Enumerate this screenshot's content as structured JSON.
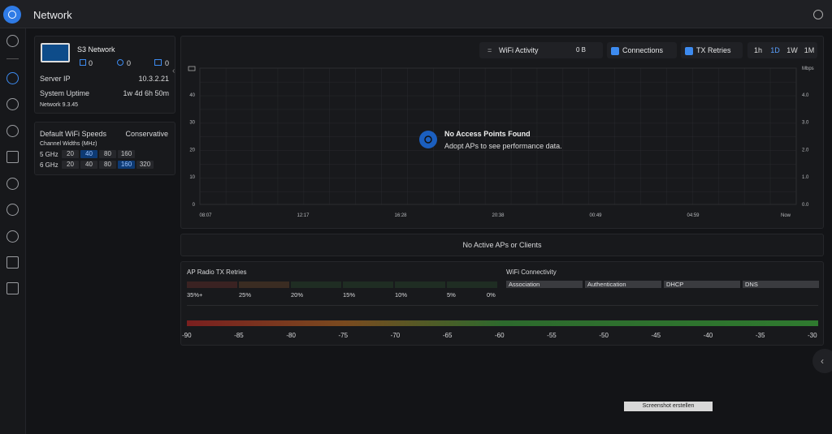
{
  "header": {
    "title": "Network"
  },
  "device": {
    "name": "S3 Network",
    "counts": [
      0,
      0,
      0
    ],
    "server_ip_label": "Server IP",
    "server_ip": "10.3.2.21",
    "uptime_label": "System Uptime",
    "uptime": "1w 4d 6h 50m",
    "version": "Network 9.3.45"
  },
  "speeds": {
    "title": "Default WiFi Speeds",
    "profile": "Conservative",
    "subtitle": "Channel Widths (MHz)",
    "rows": [
      {
        "band": "5 GHz",
        "widths": [
          20,
          40,
          80,
          160
        ],
        "selected": 1
      },
      {
        "band": "6 GHz",
        "widths": [
          20,
          40,
          80,
          160,
          320
        ],
        "selected": 3
      }
    ]
  },
  "toolbar": {
    "metric": "WiFi Activity",
    "total": "0 B",
    "connections": "Connections",
    "tx_retries": "TX Retries",
    "ranges": [
      "1h",
      "1D",
      "1W",
      "1M"
    ],
    "selected_range": 1
  },
  "chart": {
    "y2_unit": "Mbps",
    "yticks": [
      40,
      30,
      20,
      10,
      0
    ],
    "y2ticks": [
      "4.0",
      "3.0",
      "2.0",
      "1.0",
      "0.0"
    ],
    "xticks": [
      "08:07",
      "12:17",
      "16:28",
      "20:38",
      "00:49",
      "04:59",
      "Now"
    ],
    "empty_title": "No Access Points Found",
    "empty_text": "Adopt APs to see performance data."
  },
  "banner": "No Active APs or Clients",
  "retries": {
    "title": "AP Radio TX Retries",
    "labels": [
      "35%+",
      "25%",
      "20%",
      "15%",
      "10%",
      "5%",
      "0%"
    ]
  },
  "connectivity": {
    "title": "WiFi Connectivity",
    "stages": [
      "Association",
      "Authentication",
      "DHCP",
      "DNS"
    ]
  },
  "signal_scale": [
    -90,
    -85,
    -80,
    -75,
    -70,
    -65,
    -60,
    -55,
    -50,
    -45,
    -40,
    -35,
    -30
  ],
  "screenshot_button": "Screenshot erstellen"
}
